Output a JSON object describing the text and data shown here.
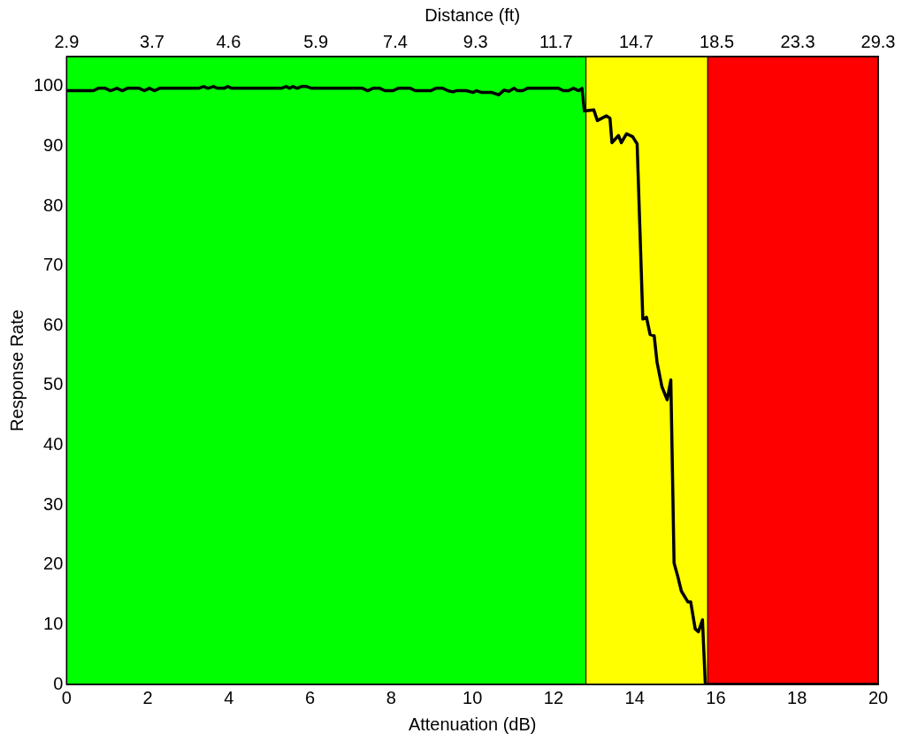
{
  "chart_data": {
    "type": "line",
    "xlabel": "Attenuation (dB)",
    "ylabel": "Response Rate",
    "x2label": "Distance (ft)",
    "xlim": [
      0,
      20
    ],
    "xticks": [
      0,
      2,
      4,
      6,
      8,
      10,
      12,
      14,
      16,
      18,
      20
    ],
    "ylim": [
      0,
      105
    ],
    "yticks": [
      0,
      10,
      20,
      30,
      40,
      50,
      60,
      70,
      80,
      90,
      100
    ],
    "x2lim": [
      2.9,
      29.3
    ],
    "x2ticks": [
      2.9,
      3.7,
      4.6,
      5.9,
      7.4,
      9.3,
      11.7,
      14.7,
      18.5,
      23.3,
      29.3
    ],
    "log": "x2",
    "grid": false,
    "legend": false,
    "marker": "none",
    "line_style": "solid",
    "bands": [
      {
        "axis": "x",
        "from": 0,
        "to": 12.8,
        "color": "#00ff00"
      },
      {
        "axis": "x",
        "from": 12.8,
        "to": 15.8,
        "color": "#ffff00"
      },
      {
        "axis": "x",
        "from": 15.8,
        "to": 20,
        "color": "#ff0000"
      }
    ],
    "series": [
      {
        "color": "#000000",
        "x": [
          0,
          0.66,
          0.78,
          0.95,
          1.08,
          1.24,
          1.37,
          1.5,
          1.79,
          1.91,
          2.04,
          2.17,
          2.29,
          3.25,
          3.38,
          3.48,
          3.62,
          3.72,
          3.88,
          3.97,
          4.07,
          5.29,
          5.41,
          5.5,
          5.58,
          5.68,
          5.79,
          5.91,
          6.04,
          7.29,
          7.42,
          7.55,
          7.72,
          7.84,
          8.05,
          8.17,
          8.47,
          8.59,
          8.97,
          9.1,
          9.27,
          9.39,
          9.52,
          9.6,
          9.85,
          10.02,
          10.1,
          10.23,
          10.48,
          10.65,
          10.78,
          10.9,
          11.03,
          11.11,
          11.24,
          11.36,
          12.12,
          12.24,
          12.37,
          12.49,
          12.62,
          12.7,
          12.76,
          12.99,
          13.08,
          13.3,
          13.39,
          13.44,
          13.6,
          13.67,
          13.8,
          13.95,
          14.06,
          14.2,
          14.29,
          14.38,
          14.48,
          14.55,
          14.67,
          14.8,
          14.89,
          14.97,
          15.06,
          15.15,
          15.31,
          15.38,
          15.49,
          15.57,
          15.67,
          15.74,
          20
        ],
        "values": [
          99.3,
          99.3,
          99.7,
          99.7,
          99.3,
          99.7,
          99.3,
          99.7,
          99.7,
          99.3,
          99.7,
          99.3,
          99.7,
          99.7,
          100,
          99.7,
          100,
          99.7,
          99.7,
          100,
          99.7,
          99.7,
          100,
          99.7,
          100,
          99.7,
          100,
          100,
          99.7,
          99.7,
          99.3,
          99.7,
          99.7,
          99.3,
          99.3,
          99.7,
          99.7,
          99.3,
          99.3,
          99.7,
          99.7,
          99.3,
          99.1,
          99.3,
          99.3,
          99,
          99.3,
          99,
          99,
          98.6,
          99.4,
          99.2,
          99.7,
          99.3,
          99.3,
          99.7,
          99.7,
          99.3,
          99.3,
          99.7,
          99.3,
          99.7,
          95.9,
          96.1,
          94.3,
          95.1,
          94.7,
          90.6,
          91.8,
          90.6,
          92.1,
          91.6,
          90.4,
          61.1,
          61.4,
          58.5,
          58.3,
          53.9,
          49.8,
          47.6,
          50.9,
          20.3,
          18.1,
          15.6,
          13.8,
          13.8,
          9.3,
          8.8,
          10.8,
          0,
          0
        ]
      }
    ]
  }
}
